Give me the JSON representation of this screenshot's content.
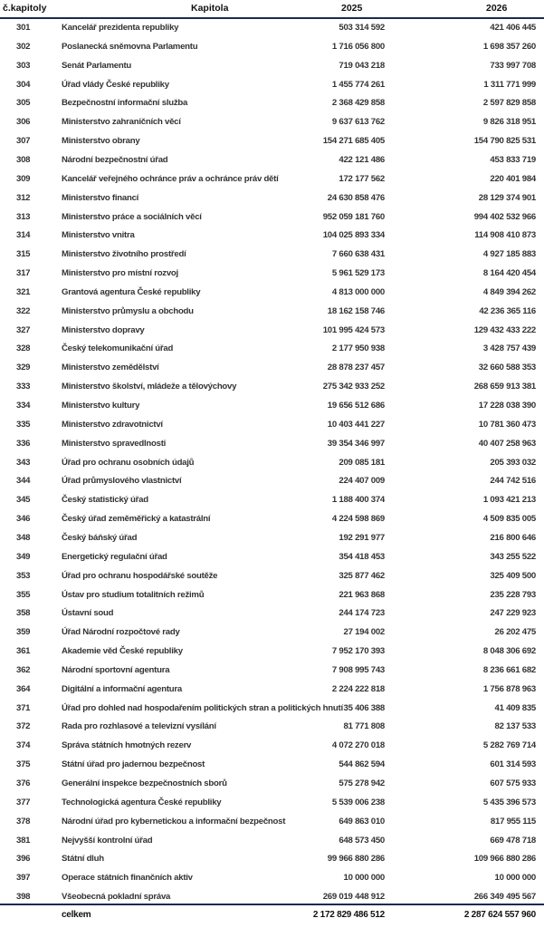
{
  "header": {
    "code": "č.kapitoly",
    "name": "Kapitola",
    "y2025": "2025",
    "y2026": "2026"
  },
  "rows": [
    {
      "code": "301",
      "name": "Kancelář prezidenta republiky",
      "y2025": "503 314 592",
      "y2026": "421 406 445"
    },
    {
      "code": "302",
      "name": "Poslanecká sněmovna Parlamentu",
      "y2025": "1 716 056 800",
      "y2026": "1 698 357 260"
    },
    {
      "code": "303",
      "name": "Senát Parlamentu",
      "y2025": "719 043 218",
      "y2026": "733 997 708"
    },
    {
      "code": "304",
      "name": "Úřad vlády České republiky",
      "y2025": "1 455 774 261",
      "y2026": "1 311 771 999"
    },
    {
      "code": "305",
      "name": "Bezpečnostní informační služba",
      "y2025": "2 368 429 858",
      "y2026": "2 597 829 858"
    },
    {
      "code": "306",
      "name": "Ministerstvo zahraničních věcí",
      "y2025": "9 637 613 762",
      "y2026": "9 826 318 951"
    },
    {
      "code": "307",
      "name": "Ministerstvo obrany",
      "y2025": "154 271 685 405",
      "y2026": "154 790 825 531"
    },
    {
      "code": "308",
      "name": "Národní bezpečnostní úřad",
      "y2025": "422 121 486",
      "y2026": "453 833 719"
    },
    {
      "code": "309",
      "name": "Kancelář veřejného ochránce práv a ochránce práv dětí",
      "y2025": "172 177 562",
      "y2026": "220 401 984"
    },
    {
      "code": "312",
      "name": "Ministerstvo financí",
      "y2025": "24 630 858 476",
      "y2026": "28 129 374 901"
    },
    {
      "code": "313",
      "name": "Ministerstvo práce a sociálních věcí",
      "y2025": "952 059 181 760",
      "y2026": "994 402 532 966"
    },
    {
      "code": "314",
      "name": "Ministerstvo vnitra",
      "y2025": "104 025 893 334",
      "y2026": "114 908 410 873"
    },
    {
      "code": "315",
      "name": "Ministerstvo životního prostředí",
      "y2025": "7 660 638 431",
      "y2026": "4 927 185 883"
    },
    {
      "code": "317",
      "name": "Ministerstvo pro místní rozvoj",
      "y2025": "5 961 529 173",
      "y2026": "8 164 420 454"
    },
    {
      "code": "321",
      "name": "Grantová agentura České republiky",
      "y2025": "4 813 000 000",
      "y2026": "4 849 394 262"
    },
    {
      "code": "322",
      "name": "Ministerstvo průmyslu a obchodu",
      "y2025": "18 162 158 746",
      "y2026": "42 236 365 116"
    },
    {
      "code": "327",
      "name": "Ministerstvo dopravy",
      "y2025": "101 995 424 573",
      "y2026": "129 432 433 222"
    },
    {
      "code": "328",
      "name": "Český telekomunikační úřad",
      "y2025": "2 177 950 938",
      "y2026": "3 428 757 439"
    },
    {
      "code": "329",
      "name": "Ministerstvo zemědělství",
      "y2025": "28 878 237 457",
      "y2026": "32 660 588 353"
    },
    {
      "code": "333",
      "name": "Ministerstvo školství, mládeže a tělovýchovy",
      "y2025": "275 342 933 252",
      "y2026": "268 659 913 381"
    },
    {
      "code": "334",
      "name": "Ministerstvo kultury",
      "y2025": "19 656 512 686",
      "y2026": "17 228 038 390"
    },
    {
      "code": "335",
      "name": "Ministerstvo zdravotnictví",
      "y2025": "10 403 441 227",
      "y2026": "10 781 360 473"
    },
    {
      "code": "336",
      "name": "Ministerstvo spravedlnosti",
      "y2025": "39 354 346 997",
      "y2026": "40 407 258 963"
    },
    {
      "code": "343",
      "name": "Úřad pro ochranu osobních údajů",
      "y2025": "209 085 181",
      "y2026": "205 393 032"
    },
    {
      "code": "344",
      "name": "Úřad průmyslového vlastnictví",
      "y2025": "224 407 009",
      "y2026": "244 742 516"
    },
    {
      "code": "345",
      "name": "Český statistický úřad",
      "y2025": "1 188 400 374",
      "y2026": "1 093 421 213"
    },
    {
      "code": "346",
      "name": "Český úřad zeměměřický a katastrální",
      "y2025": "4 224 598 869",
      "y2026": "4 509 835 005"
    },
    {
      "code": "348",
      "name": "Český báňský úřad",
      "y2025": "192 291 977",
      "y2026": "216 800 646"
    },
    {
      "code": "349",
      "name": "Energetický regulační úřad",
      "y2025": "354 418 453",
      "y2026": "343 255 522"
    },
    {
      "code": "353",
      "name": "Úřad pro ochranu hospodářské soutěže",
      "y2025": "325 877 462",
      "y2026": "325 409 500"
    },
    {
      "code": "355",
      "name": "Ústav pro studium totalitních režimů",
      "y2025": "221 963 868",
      "y2026": "235 228 793"
    },
    {
      "code": "358",
      "name": "Ústavní soud",
      "y2025": "244 174 723",
      "y2026": "247 229 923"
    },
    {
      "code": "359",
      "name": "Úřad Národní rozpočtové rady",
      "y2025": "27 194 002",
      "y2026": "26 202 475"
    },
    {
      "code": "361",
      "name": "Akademie věd České republiky",
      "y2025": "7 952 170 393",
      "y2026": "8 048 306 692"
    },
    {
      "code": "362",
      "name": "Národní sportovní agentura",
      "y2025": "7 908 995 743",
      "y2026": "8 236 661 682"
    },
    {
      "code": "364",
      "name": "Digitální a informační agentura",
      "y2025": "2 224 222 818",
      "y2026": "1 756 878 963"
    },
    {
      "code": "371",
      "name": "Úřad pro dohled nad hospodařením politických stran a politických hnutí",
      "y2025": "35 406 388",
      "y2026": "41 409 835"
    },
    {
      "code": "372",
      "name": "Rada pro rozhlasové a televizní vysílání",
      "y2025": "81 771 808",
      "y2026": "82 137 533"
    },
    {
      "code": "374",
      "name": "Správa státních hmotných rezerv",
      "y2025": "4 072 270 018",
      "y2026": "5 282 769 714"
    },
    {
      "code": "375",
      "name": "Státní úřad pro jadernou bezpečnost",
      "y2025": "544 862 594",
      "y2026": "601 314 593"
    },
    {
      "code": "376",
      "name": "Generální inspekce bezpečnostních sborů",
      "y2025": "575 278 942",
      "y2026": "607 575 933"
    },
    {
      "code": "377",
      "name": "Technologická agentura České republiky",
      "y2025": "5 539 006 238",
      "y2026": "5 435 396 573"
    },
    {
      "code": "378",
      "name": "Národní úřad pro kybernetickou a informační bezpečnost",
      "y2025": "649 863 010",
      "y2026": "817 955 115"
    },
    {
      "code": "381",
      "name": "Nejvyšší kontrolní úřad",
      "y2025": "648 573 450",
      "y2026": "669 478 718"
    },
    {
      "code": "396",
      "name": "Státní dluh",
      "y2025": "99 966 880 286",
      "y2026": "109 966 880 286"
    },
    {
      "code": "397",
      "name": "Operace státních finančních aktiv",
      "y2025": "10 000 000",
      "y2026": "10 000 000"
    },
    {
      "code": "398",
      "name": "Všeobecná pokladní správa",
      "y2025": "269 019 448 912",
      "y2026": "266 349 495 567"
    }
  ],
  "total": {
    "label": "celkem",
    "y2025": "2 172 829 486 512",
    "y2026": "2 287 624 557 960"
  },
  "colors": {
    "rule": "#1d2a52"
  }
}
